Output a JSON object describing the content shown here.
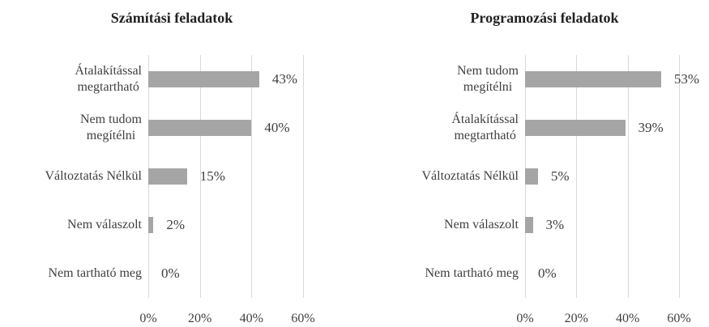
{
  "chart_data": [
    {
      "type": "barh",
      "title": "Számítási feladatok",
      "categories": [
        "Átalakítással\nmegtartható",
        "Nem tudom\nmegítélni",
        "Változtatás Nélkül",
        "Nem válaszolt",
        "Nem tartható meg"
      ],
      "values": [
        43,
        40,
        15,
        2,
        0
      ],
      "value_labels": [
        "43%",
        "40%",
        "15%",
        "2%",
        "0%"
      ],
      "color": "#a5a5a5",
      "xlim": [
        0,
        60
      ],
      "xticks": [
        {
          "value": 0,
          "label": "0%"
        },
        {
          "value": 20,
          "label": "20%"
        },
        {
          "value": 40,
          "label": "40%"
        },
        {
          "value": 60,
          "label": "60%"
        }
      ],
      "grid": true
    },
    {
      "type": "barh",
      "title": "Programozási feladatok",
      "categories": [
        "Nem tudom\nmegítélni",
        "Átalakítással\nmegtartható",
        "Változtatás Nélkül",
        "Nem válaszolt",
        "Nem tartható meg"
      ],
      "values": [
        53,
        39,
        5,
        3,
        0
      ],
      "value_labels": [
        "53%",
        "39%",
        "5%",
        "3%",
        "0%"
      ],
      "color": "#a5a5a5",
      "xlim": [
        0,
        60
      ],
      "xticks": [
        {
          "value": 0,
          "label": "0%"
        },
        {
          "value": 20,
          "label": "20%"
        },
        {
          "value": 40,
          "label": "40%"
        },
        {
          "value": 60,
          "label": "60%"
        }
      ],
      "grid": true
    }
  ]
}
